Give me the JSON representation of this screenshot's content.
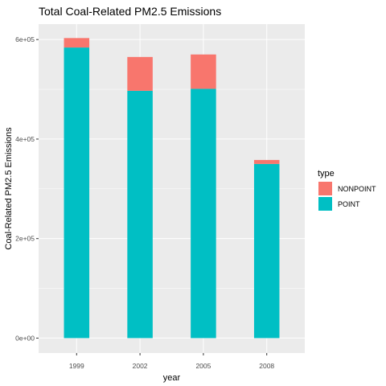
{
  "chart_data": {
    "type": "bar",
    "stacked": true,
    "title": "Total Coal-Related PM2.5 Emissions",
    "xlabel": "year",
    "ylabel": "Coal-Related PM2.5 Emissions",
    "categories": [
      "1999",
      "2002",
      "2005",
      "2008"
    ],
    "series": [
      {
        "name": "POINT",
        "color": "#00BFC4",
        "values": [
          584000,
          497000,
          501000,
          350000
        ]
      },
      {
        "name": "NONPOINT",
        "color": "#F8766D",
        "values": [
          19000,
          68000,
          69000,
          8000
        ]
      }
    ],
    "ylim": [
      -30000,
      631000
    ],
    "yticks": [
      0,
      200000,
      400000,
      600000
    ],
    "ytick_labels": [
      "0e+00",
      "2e+05",
      "4e+05",
      "6e+05"
    ],
    "legend": {
      "title": "type",
      "placement": "right",
      "entries": [
        {
          "label": "NONPOINT",
          "color": "#F8766D"
        },
        {
          "label": "POINT",
          "color": "#00BFC4"
        }
      ]
    },
    "grid": true,
    "panel_background": "#EBEBEB"
  }
}
